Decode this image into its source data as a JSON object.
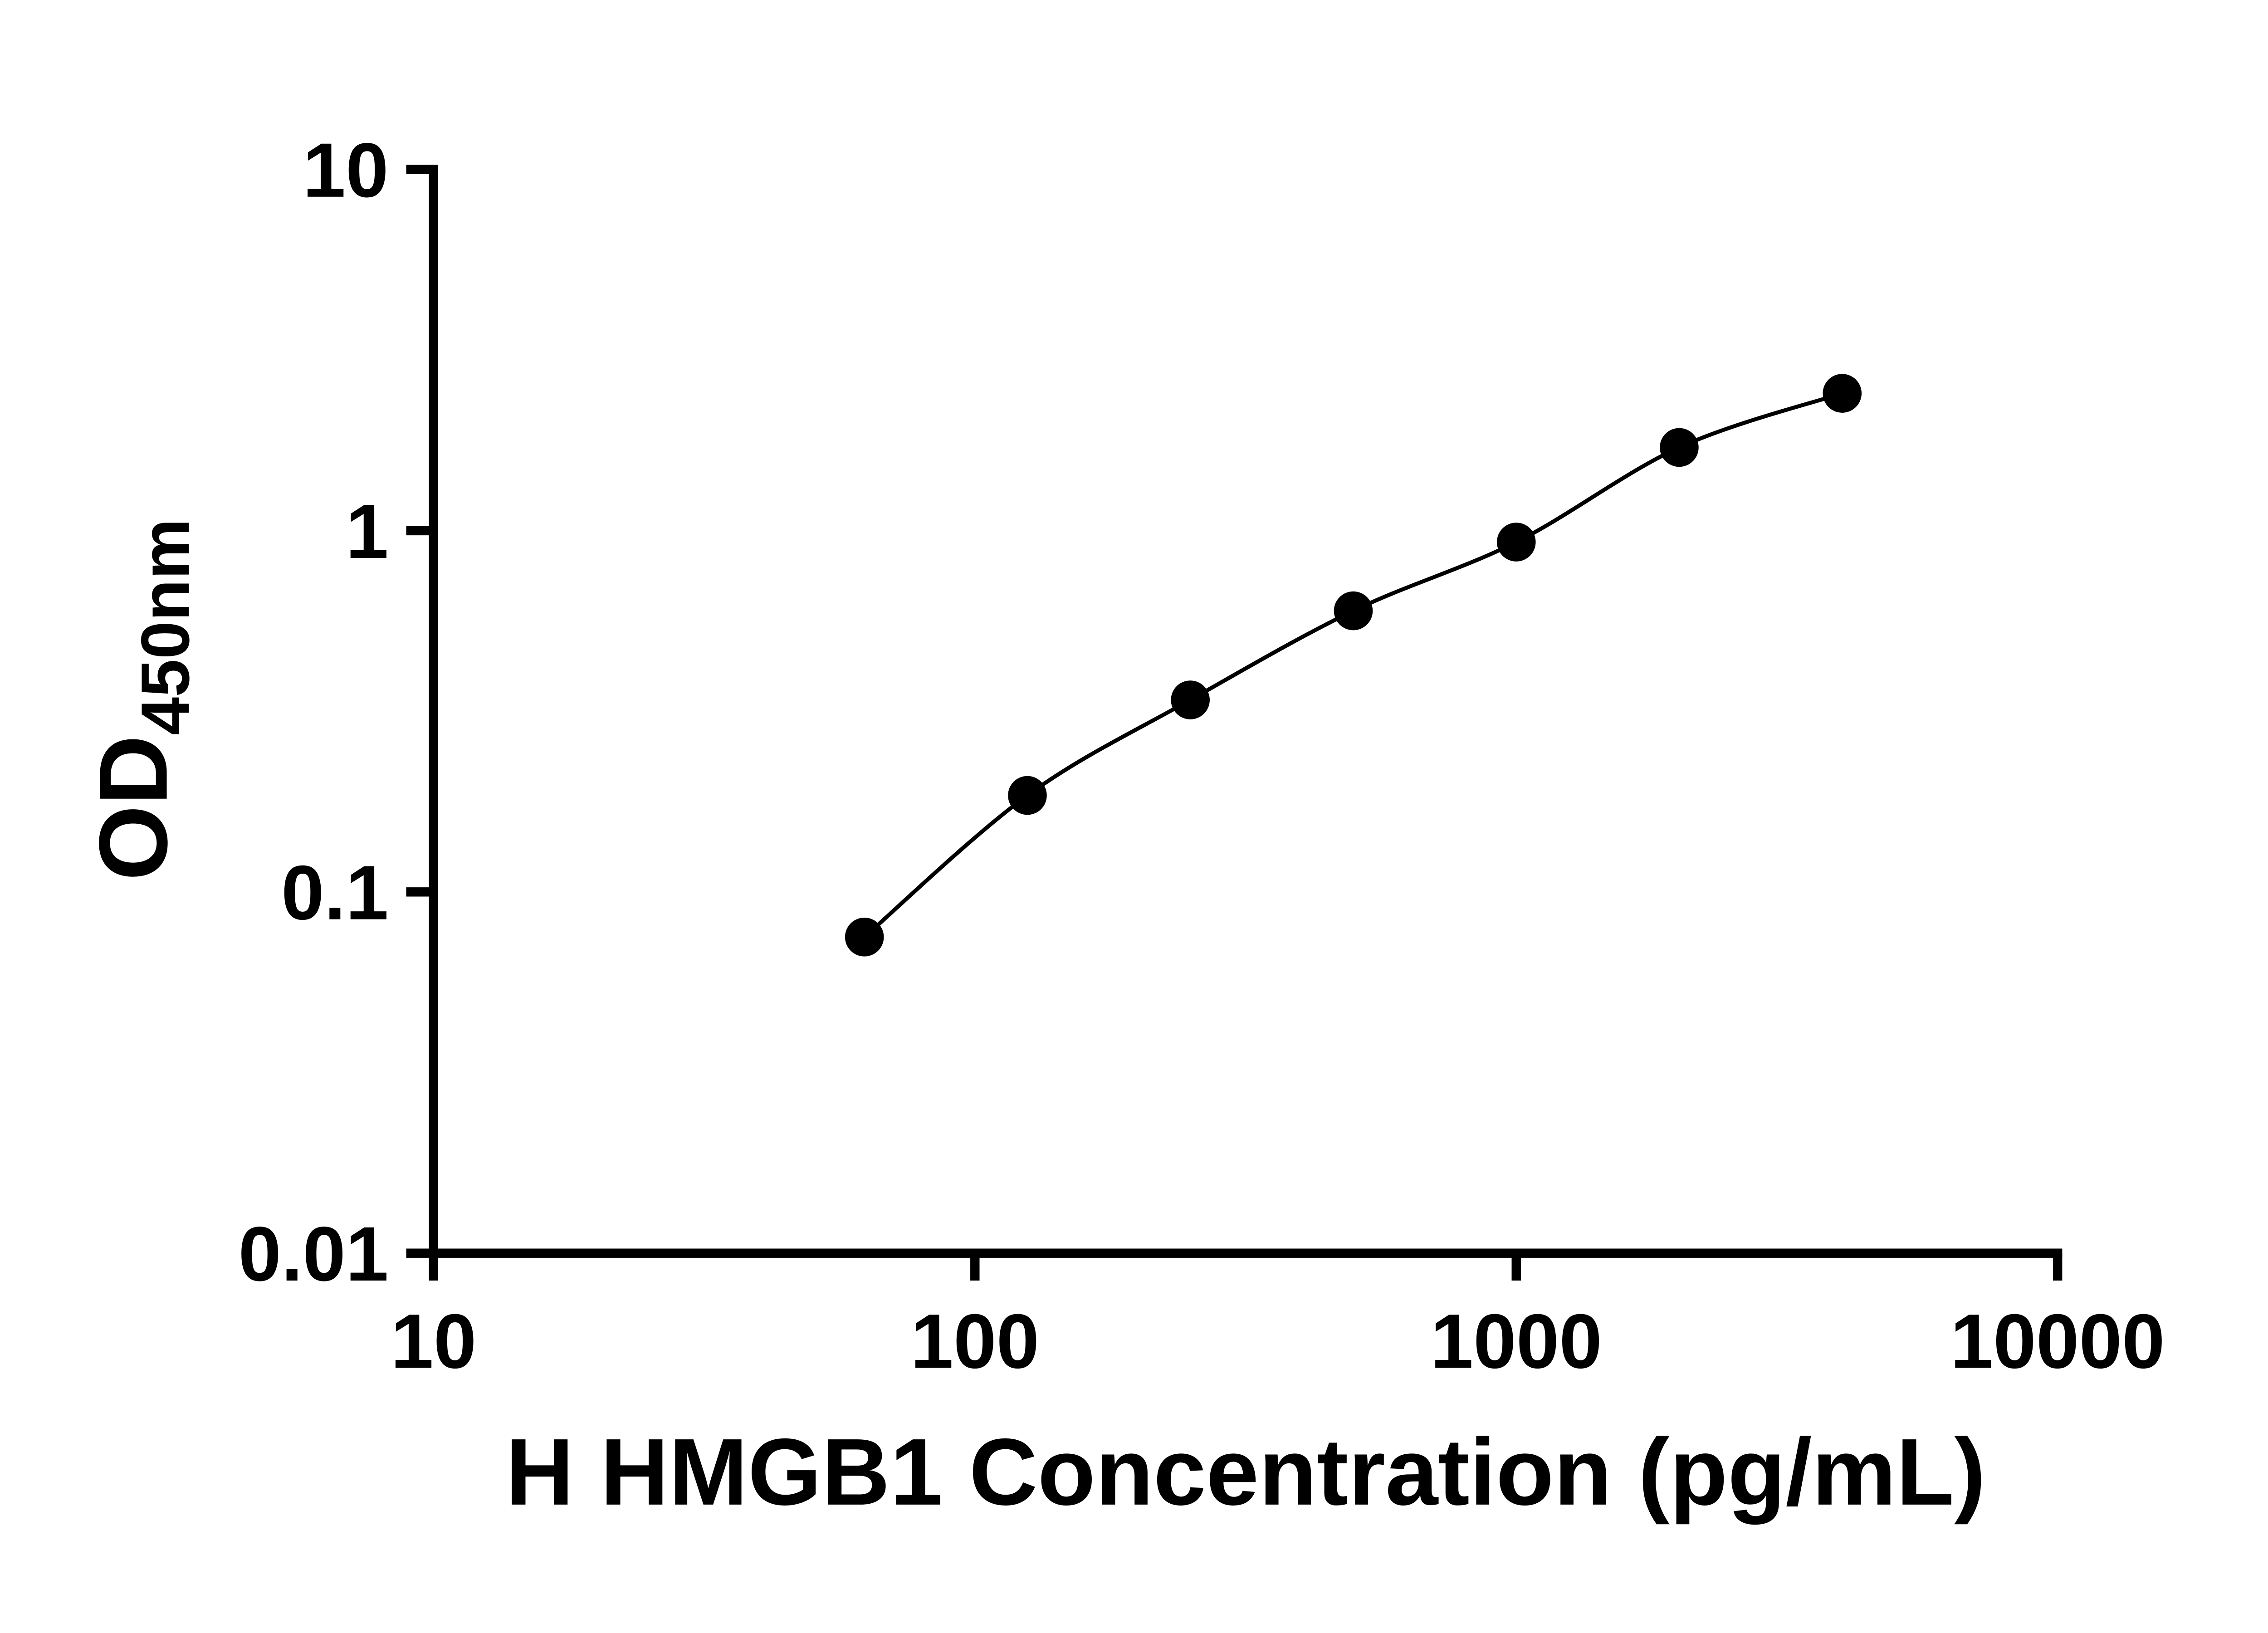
{
  "figure": {
    "background": "#ffffff"
  },
  "chart_data": {
    "type": "scatter",
    "x": [
      62.5,
      125,
      250,
      500,
      1000,
      2000,
      4000
    ],
    "y": [
      0.075,
      0.185,
      0.34,
      0.6,
      0.93,
      1.7,
      2.4
    ],
    "title": "",
    "xlabel": "H HMGB1 Concentration (pg/mL)",
    "ylabel_main": "OD",
    "ylabel_sub": "450nm",
    "xscale": "log",
    "yscale": "log",
    "xlim": [
      10,
      10000
    ],
    "ylim": [
      0.01,
      10
    ],
    "x_tick_labels": [
      "10",
      "100",
      "1000",
      "10000"
    ],
    "y_tick_labels": [
      "0.01",
      "0.1",
      "1",
      "10"
    ],
    "grid": false,
    "legend": null,
    "curve_style": "smooth fitted line through points",
    "marker_shape": "circle",
    "marker_color": "#000000",
    "line_color": "#000000",
    "axis_color": "#000000"
  }
}
